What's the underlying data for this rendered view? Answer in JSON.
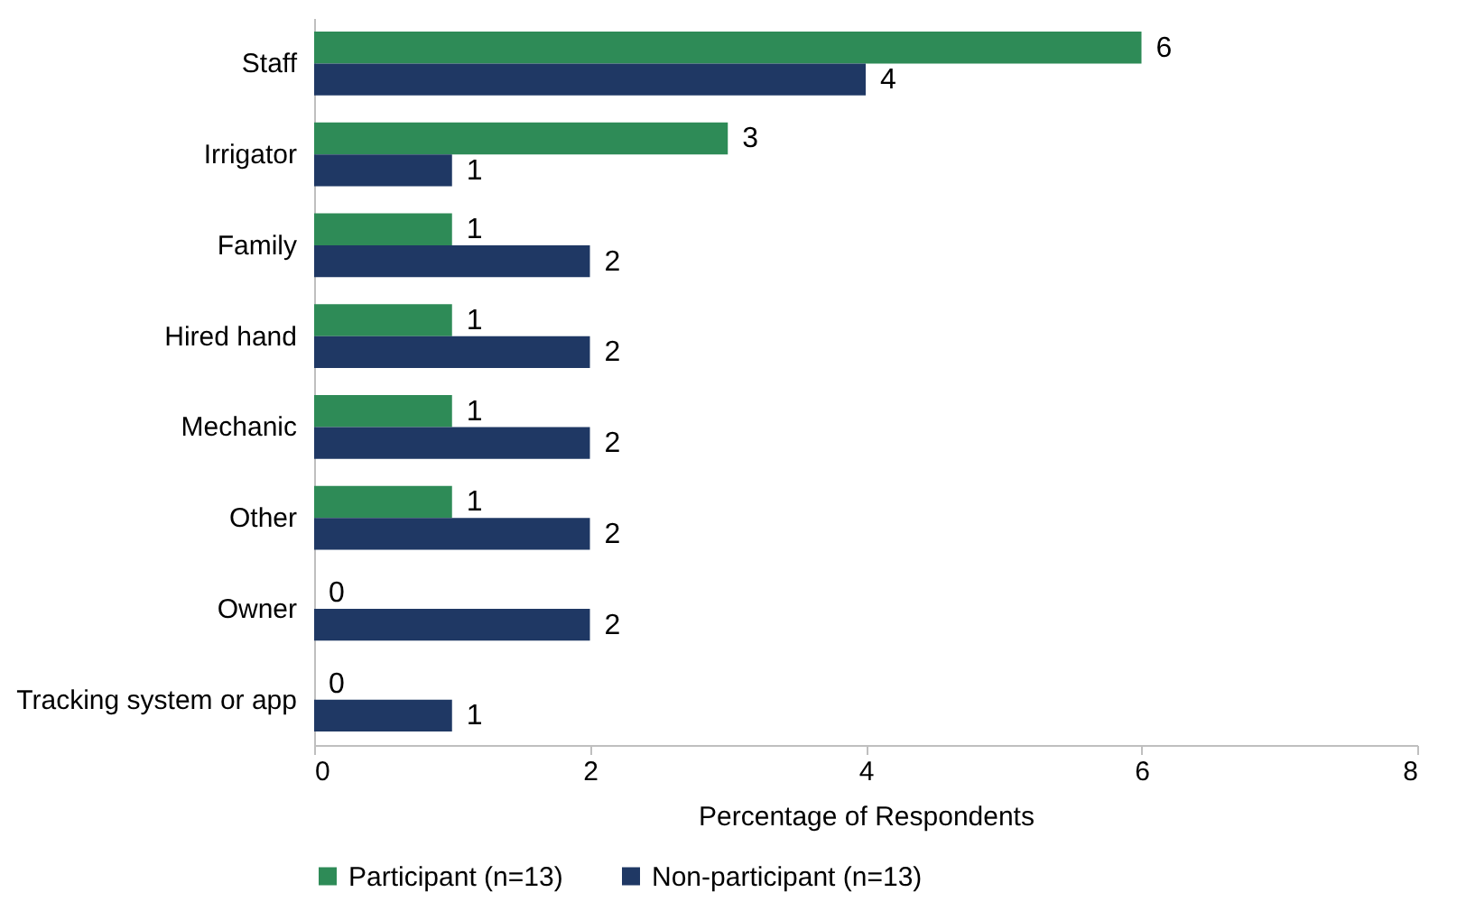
{
  "chart_data": {
    "type": "bar",
    "orientation": "horizontal",
    "xlabel": "Percentage of Respondents",
    "categories": [
      "Staff",
      "Irrigator",
      "Family",
      "Hired hand",
      "Mechanic",
      "Other",
      "Owner",
      "Tracking system or app"
    ],
    "series": [
      {
        "name": "Participant (n=13)",
        "color": "#2e8b57",
        "values": [
          6,
          3,
          1,
          1,
          1,
          1,
          0,
          0
        ]
      },
      {
        "name": "Non-participant (n=13)",
        "color": "#1f3864",
        "values": [
          4,
          1,
          2,
          2,
          2,
          2,
          2,
          1
        ]
      }
    ],
    "xlim": [
      0,
      8
    ],
    "xticks": [
      0,
      2,
      4,
      6,
      8
    ],
    "grid": false,
    "legend": "bottom",
    "data_labels": true
  }
}
